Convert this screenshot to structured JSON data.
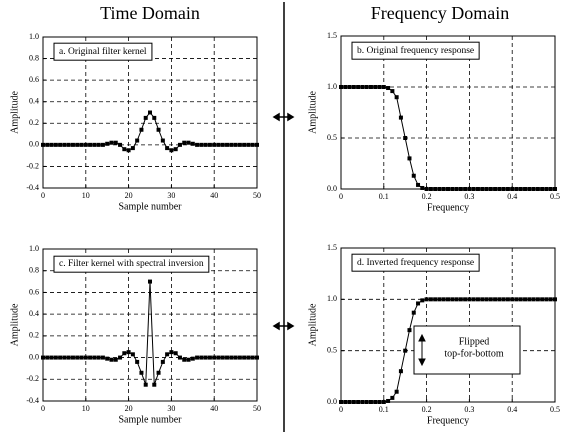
{
  "headings": [
    "Time Domain",
    "Frequency Domain"
  ],
  "chart_data": [
    {
      "type": "line",
      "title": "a.  Original filter kernel",
      "xlabel": "Sample number",
      "ylabel": "Amplitude",
      "color": "#000000",
      "grid": true,
      "x": [
        0,
        1,
        2,
        3,
        4,
        5,
        6,
        7,
        8,
        9,
        10,
        11,
        12,
        13,
        14,
        15,
        16,
        17,
        18,
        19,
        20,
        21,
        22,
        23,
        24,
        25,
        26,
        27,
        28,
        29,
        30,
        31,
        32,
        33,
        34,
        35,
        36,
        37,
        38,
        39,
        40,
        41,
        42,
        43,
        44,
        45,
        46,
        47,
        48,
        49,
        50
      ],
      "values": [
        0,
        0,
        0,
        0,
        0,
        0,
        0,
        0,
        0,
        0,
        0,
        0,
        0,
        0,
        0,
        0.01,
        0.02,
        0.02,
        0,
        -0.04,
        -0.05,
        -0.03,
        0.04,
        0.14,
        0.25,
        0.3,
        0.25,
        0.14,
        0.04,
        -0.03,
        -0.05,
        -0.04,
        0,
        0.02,
        0.02,
        0.01,
        0,
        0,
        0,
        0,
        0,
        0,
        0,
        0,
        0,
        0,
        0,
        0,
        0,
        0,
        0
      ],
      "xlim": [
        0,
        50
      ],
      "xticks": [
        0,
        10,
        20,
        30,
        40,
        50
      ],
      "ylim": [
        -0.4,
        1
      ],
      "yticks": [
        -0.4,
        -0.2,
        {
          "value": 0,
          "label": "0.0"
        },
        0.2,
        0.4,
        0.6,
        0.8,
        {
          "value": 1,
          "label": "1.0"
        }
      ]
    },
    {
      "type": "line",
      "title": "b.  Original frequency response",
      "xlabel": "Frequency",
      "ylabel": "Amplitude",
      "color": "#000000",
      "grid": true,
      "x": [
        0,
        0.01,
        0.02,
        0.03,
        0.04,
        0.05,
        0.06,
        0.07,
        0.08,
        0.09,
        0.1,
        0.11,
        0.12,
        0.13,
        0.14,
        0.15,
        0.16,
        0.17,
        0.18,
        0.19,
        0.2,
        0.21,
        0.22,
        0.23,
        0.24,
        0.25,
        0.26,
        0.27,
        0.28,
        0.29,
        0.3,
        0.31,
        0.32,
        0.33,
        0.34,
        0.35,
        0.36,
        0.37,
        0.38,
        0.39,
        0.4,
        0.41,
        0.42,
        0.43,
        0.44,
        0.45,
        0.46,
        0.47,
        0.48,
        0.49,
        0.5
      ],
      "values": [
        1,
        1,
        1,
        1,
        1,
        1,
        1,
        1,
        1,
        1,
        1,
        0.99,
        0.96,
        0.9,
        0.7,
        0.5,
        0.3,
        0.13,
        0.04,
        0.01,
        0,
        0,
        0,
        0,
        0,
        0,
        0,
        0,
        0,
        0,
        0,
        0,
        0,
        0,
        0,
        0,
        0,
        0,
        0,
        0,
        0,
        0,
        0,
        0,
        0,
        0,
        0,
        0,
        0,
        0,
        0
      ],
      "xlim": [
        0,
        0.5
      ],
      "xticks": [
        0,
        0.1,
        0.2,
        0.3,
        0.4,
        0.5
      ],
      "ylim": [
        0,
        1.5
      ],
      "yticks": [
        {
          "value": 0,
          "label": "0.0"
        },
        0.5,
        {
          "value": 1,
          "label": "1.0"
        },
        1.5
      ]
    },
    {
      "type": "line",
      "title": "c.  Filter kernel with spectral inversion",
      "xlabel": "Sample number",
      "ylabel": "Amplitude",
      "color": "#000000",
      "grid": true,
      "x": [
        0,
        1,
        2,
        3,
        4,
        5,
        6,
        7,
        8,
        9,
        10,
        11,
        12,
        13,
        14,
        15,
        16,
        17,
        18,
        19,
        20,
        21,
        22,
        23,
        24,
        25,
        26,
        27,
        28,
        29,
        30,
        31,
        32,
        33,
        34,
        35,
        36,
        37,
        38,
        39,
        40,
        41,
        42,
        43,
        44,
        45,
        46,
        47,
        48,
        49,
        50
      ],
      "values": [
        0,
        0,
        0,
        0,
        0,
        0,
        0,
        0,
        0,
        0,
        0,
        0,
        0,
        0,
        0,
        -0.01,
        -0.02,
        -0.02,
        0,
        0.04,
        0.05,
        0.03,
        -0.04,
        -0.14,
        -0.25,
        0.7,
        -0.25,
        -0.14,
        -0.04,
        0.03,
        0.05,
        0.04,
        0,
        -0.02,
        -0.02,
        -0.01,
        0,
        0,
        0,
        0,
        0,
        0,
        0,
        0,
        0,
        0,
        0,
        0,
        0,
        0,
        0
      ],
      "xlim": [
        0,
        50
      ],
      "xticks": [
        0,
        10,
        20,
        30,
        40,
        50
      ],
      "ylim": [
        -0.4,
        1
      ],
      "yticks": [
        -0.4,
        -0.2,
        {
          "value": 0,
          "label": "0.0"
        },
        0.2,
        0.4,
        0.6,
        0.8,
        {
          "value": 1,
          "label": "1.0"
        }
      ]
    },
    {
      "type": "line",
      "title": "d.  Inverted frequency response",
      "xlabel": "Frequency",
      "ylabel": "Amplitude",
      "color": "#000000",
      "grid": true,
      "annotation": [
        "Flipped",
        "top-for-bottom"
      ],
      "x": [
        0,
        0.01,
        0.02,
        0.03,
        0.04,
        0.05,
        0.06,
        0.07,
        0.08,
        0.09,
        0.1,
        0.11,
        0.12,
        0.13,
        0.14,
        0.15,
        0.16,
        0.17,
        0.18,
        0.19,
        0.2,
        0.21,
        0.22,
        0.23,
        0.24,
        0.25,
        0.26,
        0.27,
        0.28,
        0.29,
        0.3,
        0.31,
        0.32,
        0.33,
        0.34,
        0.35,
        0.36,
        0.37,
        0.38,
        0.39,
        0.4,
        0.41,
        0.42,
        0.43,
        0.44,
        0.45,
        0.46,
        0.47,
        0.48,
        0.49,
        0.5
      ],
      "values": [
        0,
        0,
        0,
        0,
        0,
        0,
        0,
        0,
        0,
        0,
        0,
        0.01,
        0.04,
        0.1,
        0.3,
        0.5,
        0.7,
        0.87,
        0.96,
        0.99,
        1,
        1,
        1,
        1,
        1,
        1,
        1,
        1,
        1,
        1,
        1,
        1,
        1,
        1,
        1,
        1,
        1,
        1,
        1,
        1,
        1,
        1,
        1,
        1,
        1,
        1,
        1,
        1,
        1,
        1,
        1
      ],
      "xlim": [
        0,
        0.5
      ],
      "xticks": [
        0,
        0.1,
        0.2,
        0.3,
        0.4,
        0.5
      ],
      "ylim": [
        0,
        1.5
      ],
      "yticks": [
        {
          "value": 0,
          "label": "0.0"
        },
        0.5,
        {
          "value": 1,
          "label": "1.0"
        },
        1.5
      ]
    }
  ]
}
